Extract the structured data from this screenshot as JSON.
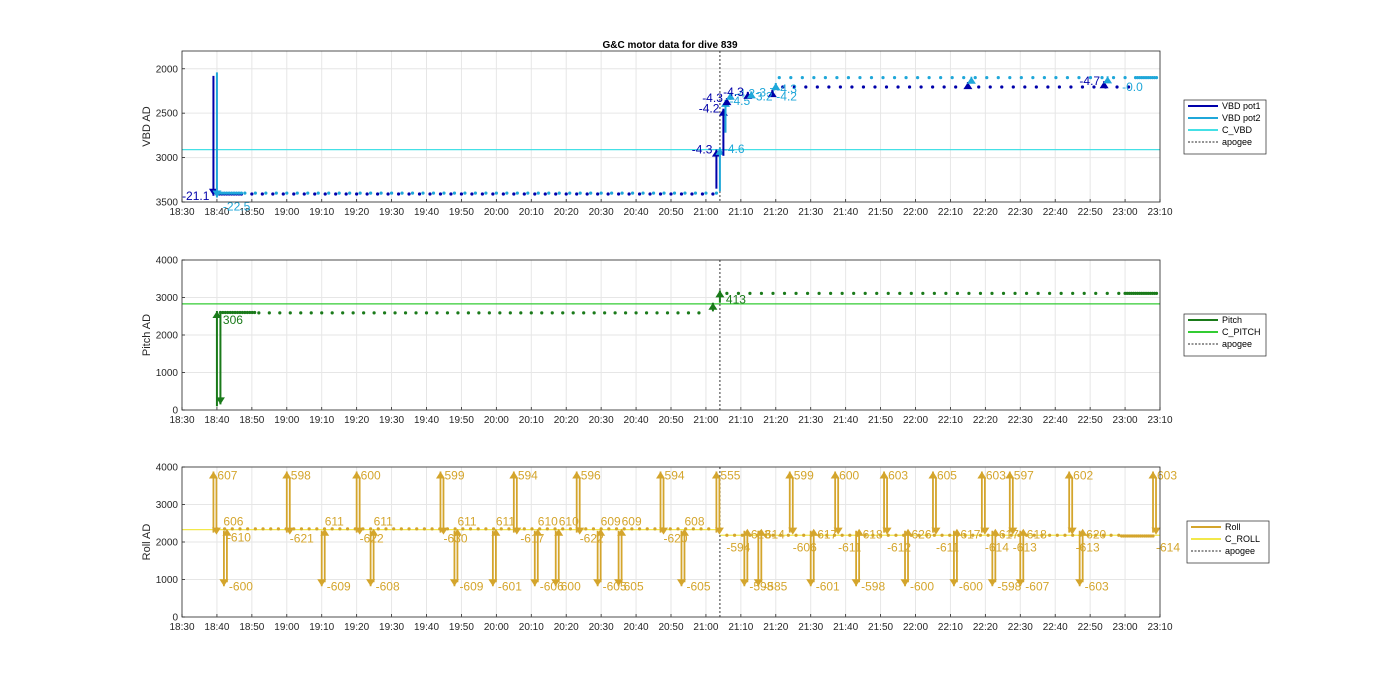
{
  "chart_data": {
    "title": "G&C motor data for dive 839",
    "time_ticks": [
      "18:30",
      "18:40",
      "18:50",
      "19:00",
      "19:10",
      "19:20",
      "19:30",
      "19:40",
      "19:50",
      "20:00",
      "20:10",
      "20:20",
      "20:30",
      "20:40",
      "20:50",
      "21:00",
      "21:10",
      "21:20",
      "21:30",
      "21:40",
      "21:50",
      "22:00",
      "22:10",
      "22:20",
      "22:30",
      "22:40",
      "22:50",
      "23:00",
      "23:10"
    ],
    "xlim": [
      "18:30",
      "23:10"
    ],
    "apogee_time": "21:04",
    "colors": {
      "vbd1": "#0000aa",
      "vbd2": "#1fa7d9",
      "cvbd": "#44e0e6",
      "pitch": "#1a7a1a",
      "cpitch": "#33cc33",
      "roll": "#d4a52c",
      "croll": "#f2e84a",
      "apogee": "#555555"
    },
    "panels": [
      {
        "id": "vbd",
        "type": "line",
        "ylabel": "VBD AD",
        "y_reversed": true,
        "ylim": [
          1800,
          3500
        ],
        "yticks": [
          "2000",
          "2500",
          "3000",
          "3500"
        ],
        "legend": {
          "position": "right",
          "entries": [
            {
              "label": "VBD pot1",
              "color": "#0000aa",
              "style": "solid"
            },
            {
              "label": "VBD pot2",
              "color": "#1fa7d9",
              "style": "solid"
            },
            {
              "label": "C_VBD",
              "color": "#44e0e6",
              "style": "solid"
            },
            {
              "label": "apogee",
              "color": "#555555",
              "style": "dotted"
            }
          ]
        },
        "reference_line": {
          "name": "C_VBD",
          "y": 2910,
          "color": "#44e0e6"
        },
        "dot_series": [
          {
            "name": "VBD pot1",
            "color": "#0000aa",
            "segments": [
              {
                "from": "18:40",
                "to": "18:47",
                "y": 3410,
                "step_min": 0.7
              },
              {
                "from": "18:47",
                "to": "21:02",
                "y": 3410,
                "step_min": 3.0
              },
              {
                "from": "21:22",
                "to": "23:03",
                "y": 2205,
                "step_min": 3.3
              }
            ]
          },
          {
            "name": "VBD pot2",
            "color": "#1fa7d9",
            "segments": [
              {
                "from": "18:40",
                "to": "18:47",
                "y": 3400,
                "step_min": 0.7
              },
              {
                "from": "18:48",
                "to": "21:03",
                "y": 3400,
                "step_min": 3.0
              },
              {
                "from": "21:21",
                "to": "23:02",
                "y": 2100,
                "step_min": 3.3
              },
              {
                "from": "23:03",
                "to": "23:09",
                "y": 2100,
                "step_min": 0.6
              }
            ]
          }
        ],
        "motor_moves": [
          {
            "t": "18:39",
            "from": 2080,
            "to": 3430,
            "color": "#0000aa",
            "label": "-21.1",
            "label_side": "left"
          },
          {
            "t": "18:40",
            "from": 2040,
            "to": 3450,
            "color": "#1fa7d9",
            "label": "-22.5",
            "label_side": "below-right"
          },
          {
            "t": "21:03",
            "from": 3350,
            "to": 2910,
            "color": "#0000aa",
            "label": "-4.3",
            "label_side": "left"
          },
          {
            "t": "21:04",
            "from": 3380,
            "to": 2890,
            "color": "#1fa7d9",
            "label": "-4.6",
            "label_side": "right"
          },
          {
            "t": "21:05",
            "from": 2980,
            "to": 2450,
            "color": "#0000aa",
            "label": "-4.2",
            "label_side": "left"
          },
          {
            "t": "21:05.6",
            "from": 2720,
            "to": 2350,
            "color": "#1fa7d9",
            "label": "-4.5",
            "label_side": "right"
          },
          {
            "t": "21:06",
            "from": 2400,
            "to": 2330,
            "color": "#0000aa",
            "label": "-4.3",
            "label_side": "left"
          },
          {
            "t": "21:07",
            "from": 2350,
            "to": 2270,
            "color": "#1fa7d9",
            "label": "-4.2",
            "label_side": "right"
          },
          {
            "t": "21:12",
            "from": 2330,
            "to": 2260,
            "color": "#0000aa",
            "label": "-4.3",
            "label_side": "left"
          },
          {
            "t": "21:13",
            "from": 2320,
            "to": 2255,
            "color": "#1fa7d9",
            "label": "-3.7",
            "label_side": "right"
          },
          {
            "t": "21:19",
            "from": 2300,
            "to": 2240,
            "color": "#0000aa",
            "label": "",
            "label_side": "right"
          },
          {
            "t": "21:20",
            "from": 2240,
            "to": 2160,
            "color": "#1fa7d9",
            "label": "",
            "label_side": "right"
          },
          {
            "t": "22:15",
            "from": 2205,
            "to": 2150,
            "color": "#0000aa",
            "label": "",
            "label_side": "right"
          },
          {
            "t": "22:16",
            "from": 2100,
            "to": 2090,
            "color": "#1fa7d9",
            "label": "",
            "label_side": "right"
          },
          {
            "t": "22:54",
            "from": 2205,
            "to": 2140,
            "color": "#0000aa",
            "label": "-4.7",
            "label_side": "left"
          },
          {
            "t": "22:55",
            "from": 2100,
            "to": 2085,
            "color": "#1fa7d9",
            "label": "",
            "label_side": "right"
          }
        ],
        "free_labels": [
          {
            "t": "21:19",
            "y": 2230,
            "text": "-4.3",
            "color": "#1fa7d9"
          },
          {
            "t": "21:19",
            "y": 2310,
            "text": "-4.2",
            "color": "#1fa7d9"
          },
          {
            "t": "21:12",
            "y": 2310,
            "text": "-3.2",
            "color": "#1fa7d9"
          },
          {
            "t": "22:58",
            "y": 2205,
            "text": "-0.0",
            "color": "#1fa7d9"
          }
        ]
      },
      {
        "id": "pitch",
        "type": "line",
        "ylabel": "Pitch AD",
        "y_reversed": false,
        "ylim": [
          0,
          4000
        ],
        "yticks": [
          "0",
          "1000",
          "2000",
          "3000",
          "4000"
        ],
        "legend": {
          "position": "right",
          "entries": [
            {
              "label": "Pitch",
              "color": "#1a7a1a",
              "style": "solid"
            },
            {
              "label": "C_PITCH",
              "color": "#33cc33",
              "style": "solid"
            },
            {
              "label": "apogee",
              "color": "#555555",
              "style": "dotted"
            }
          ]
        },
        "reference_line": {
          "name": "C_PITCH",
          "y": 2830,
          "color": "#33cc33"
        },
        "dot_series": [
          {
            "name": "Pitch",
            "color": "#1a7a1a",
            "segments": [
              {
                "from": "18:41",
                "to": "18:51",
                "y": 2600,
                "step_min": 0.7
              },
              {
                "from": "18:52",
                "to": "21:00",
                "y": 2590,
                "step_min": 3.0
              },
              {
                "from": "21:06",
                "to": "23:00",
                "y": 3110,
                "step_min": 3.3
              },
              {
                "from": "23:00",
                "to": "23:09",
                "y": 3110,
                "step_min": 0.6
              }
            ]
          }
        ],
        "motor_moves": [
          {
            "t": "18:40",
            "from": 100,
            "to": 2640,
            "color": "#1a7a1a",
            "label": "306",
            "label_side": "below-right"
          },
          {
            "t": "18:41",
            "from": 2600,
            "to": 150,
            "color": "#1a7a1a",
            "label": "",
            "label_side": "right"
          },
          {
            "t": "21:02",
            "from": 2630,
            "to": 2860,
            "color": "#1a7a1a",
            "label": "",
            "label_side": "right"
          },
          {
            "t": "21:04",
            "from": 2860,
            "to": 3190,
            "color": "#1a7a1a",
            "label": "413",
            "label_side": "below-right"
          }
        ],
        "free_labels": []
      },
      {
        "id": "roll",
        "type": "line",
        "ylabel": "Roll AD",
        "y_reversed": false,
        "ylim": [
          0,
          4000
        ],
        "yticks": [
          "0",
          "1000",
          "2000",
          "3000",
          "4000"
        ],
        "legend": {
          "position": "right",
          "entries": [
            {
              "label": "Roll",
              "color": "#d4a52c",
              "style": "solid"
            },
            {
              "label": "C_ROLL",
              "color": "#f2e84a",
              "style": "solid"
            },
            {
              "label": "apogee",
              "color": "#555555",
              "style": "dotted"
            }
          ]
        },
        "reference_lines": [
          {
            "name": "C_ROLL",
            "from": "18:30",
            "to": "21:04",
            "y": 2330,
            "color": "#f2e84a"
          },
          {
            "name": "C_ROLL",
            "from": "21:04",
            "to": "23:10",
            "y": 2180,
            "color": "#f2e84a"
          }
        ],
        "dot_series": [
          {
            "name": "Roll",
            "color": "#d4a52c",
            "segments": [
              {
                "from": "18:40",
                "to": "21:01",
                "y": 2350,
                "step_min": 2.2
              },
              {
                "from": "21:06",
                "to": "22:59",
                "y": 2180,
                "step_min": 2.2
              },
              {
                "from": "22:59",
                "to": "23:08",
                "y": 2160,
                "step_min": 0.6
              }
            ]
          }
        ],
        "spikes": [
          {
            "t": "18:39",
            "dir": "up",
            "label": "607"
          },
          {
            "t": "18:42",
            "dir": "down",
            "label": "-600"
          },
          {
            "t": "18:41",
            "dir": "none",
            "label": "606",
            "y": 2550
          },
          {
            "t": "18:42",
            "dir": "none",
            "label": "-610",
            "y": 2120
          },
          {
            "t": "19:00",
            "dir": "up",
            "label": "598"
          },
          {
            "t": "19:00",
            "dir": "none",
            "label": "-621",
            "y": 2090
          },
          {
            "t": "19:10",
            "dir": "down",
            "label": "-609"
          },
          {
            "t": "19:10",
            "dir": "none",
            "label": "611",
            "y": 2550
          },
          {
            "t": "19:20",
            "dir": "up",
            "label": "600"
          },
          {
            "t": "19:20",
            "dir": "none",
            "label": "-622",
            "y": 2090
          },
          {
            "t": "19:24",
            "dir": "down",
            "label": "-608"
          },
          {
            "t": "19:24",
            "dir": "none",
            "label": "611",
            "y": 2550
          },
          {
            "t": "19:44",
            "dir": "up",
            "label": "599"
          },
          {
            "t": "19:44",
            "dir": "none",
            "label": "-630",
            "y": 2090
          },
          {
            "t": "19:48",
            "dir": "down",
            "label": "-609"
          },
          {
            "t": "19:48",
            "dir": "none",
            "label": "611",
            "y": 2550
          },
          {
            "t": "19:59",
            "dir": "down",
            "label": "-601"
          },
          {
            "t": "19:59",
            "dir": "none",
            "label": "611",
            "y": 2550
          },
          {
            "t": "20:05",
            "dir": "up",
            "label": "594"
          },
          {
            "t": "20:06",
            "dir": "none",
            "label": "-617",
            "y": 2090
          },
          {
            "t": "20:11",
            "dir": "down",
            "label": "-606"
          },
          {
            "t": "20:11",
            "dir": "none",
            "label": "610",
            "y": 2550
          },
          {
            "t": "20:17",
            "dir": "down",
            "label": "600"
          },
          {
            "t": "20:17",
            "dir": "none",
            "label": "610",
            "y": 2550
          },
          {
            "t": "20:23",
            "dir": "up",
            "label": "596"
          },
          {
            "t": "20:23",
            "dir": "none",
            "label": "-622",
            "y": 2090
          },
          {
            "t": "20:29",
            "dir": "down",
            "label": "-605"
          },
          {
            "t": "20:29",
            "dir": "none",
            "label": "609",
            "y": 2550
          },
          {
            "t": "20:35",
            "dir": "down",
            "label": "605"
          },
          {
            "t": "20:35",
            "dir": "none",
            "label": "609",
            "y": 2550
          },
          {
            "t": "20:47",
            "dir": "up",
            "label": "594"
          },
          {
            "t": "20:47",
            "dir": "none",
            "label": "-620",
            "y": 2090
          },
          {
            "t": "20:53",
            "dir": "down",
            "label": "-605"
          },
          {
            "t": "20:53",
            "dir": "none",
            "label": "608",
            "y": 2550
          },
          {
            "t": "21:03",
            "dir": "up",
            "label": "555"
          },
          {
            "t": "21:05",
            "dir": "none",
            "label": "-594",
            "y": 1850
          },
          {
            "t": "21:11",
            "dir": "down",
            "label": "-598"
          },
          {
            "t": "21:12",
            "dir": "none",
            "label": "613",
            "y": 2200
          },
          {
            "t": "21:15",
            "dir": "down",
            "label": "-585"
          },
          {
            "t": "21:16",
            "dir": "none",
            "label": "614",
            "y": 2200
          },
          {
            "t": "21:24",
            "dir": "up",
            "label": "599"
          },
          {
            "t": "21:24",
            "dir": "none",
            "label": "-606",
            "y": 1850
          },
          {
            "t": "21:30",
            "dir": "down",
            "label": "-601"
          },
          {
            "t": "21:31",
            "dir": "none",
            "label": "617",
            "y": 2200
          },
          {
            "t": "21:37",
            "dir": "up",
            "label": "600"
          },
          {
            "t": "21:37",
            "dir": "none",
            "label": "-611",
            "y": 1850
          },
          {
            "t": "21:43",
            "dir": "down",
            "label": "-598"
          },
          {
            "t": "21:44",
            "dir": "none",
            "label": "618",
            "y": 2200
          },
          {
            "t": "21:51",
            "dir": "up",
            "label": "603"
          },
          {
            "t": "21:51",
            "dir": "none",
            "label": "-612",
            "y": 1850
          },
          {
            "t": "21:57",
            "dir": "down",
            "label": "-600"
          },
          {
            "t": "21:58",
            "dir": "none",
            "label": "626",
            "y": 2200
          },
          {
            "t": "22:05",
            "dir": "up",
            "label": "605"
          },
          {
            "t": "22:05",
            "dir": "none",
            "label": "-611",
            "y": 1850
          },
          {
            "t": "22:11",
            "dir": "down",
            "label": "-600"
          },
          {
            "t": "22:12",
            "dir": "none",
            "label": "617",
            "y": 2200
          },
          {
            "t": "22:19",
            "dir": "up",
            "label": "603"
          },
          {
            "t": "22:19",
            "dir": "none",
            "label": "-614",
            "y": 1850
          },
          {
            "t": "22:22",
            "dir": "down",
            "label": "-598"
          },
          {
            "t": "22:23",
            "dir": "none",
            "label": "617",
            "y": 2200
          },
          {
            "t": "22:27",
            "dir": "up",
            "label": "597"
          },
          {
            "t": "22:27",
            "dir": "none",
            "label": "-613",
            "y": 1850
          },
          {
            "t": "22:30",
            "dir": "down",
            "label": "-607"
          },
          {
            "t": "22:31",
            "dir": "none",
            "label": "618",
            "y": 2200
          },
          {
            "t": "22:44",
            "dir": "up",
            "label": "602"
          },
          {
            "t": "22:45",
            "dir": "none",
            "label": "-613",
            "y": 1850
          },
          {
            "t": "22:47",
            "dir": "down",
            "label": "-603"
          },
          {
            "t": "22:48",
            "dir": "none",
            "label": "620",
            "y": 2200
          },
          {
            "t": "23:08",
            "dir": "up",
            "label": "603"
          },
          {
            "t": "23:08",
            "dir": "none",
            "label": "-614",
            "y": 1850
          }
        ]
      }
    ]
  }
}
